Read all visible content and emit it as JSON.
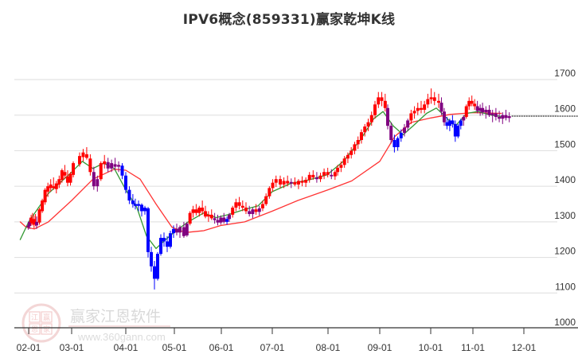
{
  "title": "IPV6概念(859331)赢家乾坤K线",
  "watermark": {
    "brand": "赢家江恩软件",
    "url": "www.360gann.com",
    "seal_chars": [
      "江",
      "赢",
      "恩",
      "家"
    ]
  },
  "colors": {
    "up": "#ff0000",
    "down": "#0000ff",
    "neutral": "#800080",
    "ma_short": "#339933",
    "ma_long": "#ff3333",
    "grid": "#dddddd",
    "axis": "#333333",
    "last_price_line": "#000000"
  },
  "chart_data": {
    "type": "candlestick",
    "title": "IPV6概念(859331)赢家乾坤K线",
    "xlabel": "",
    "ylabel": "",
    "ylim": [
      1000,
      1700
    ],
    "y_ticks": [
      1000,
      1100,
      1200,
      1300,
      1400,
      1500,
      1600,
      1700
    ],
    "x_ticks": [
      "02-01",
      "03-01",
      "04-01",
      "05-01",
      "06-01",
      "07-01",
      "08-01",
      "09-01",
      "10-01",
      "11-01",
      "12-01"
    ],
    "grid": true,
    "y_axis_position": "right",
    "last_price": 1597,
    "series_note": "OHLC approximated from pixels; color: red=up, blue=down, purple=neutral/transition",
    "candles": [
      [
        "01-20",
        1290,
        1300,
        1278,
        1285,
        "n"
      ],
      [
        "01-22",
        1288,
        1310,
        1280,
        1300,
        "n"
      ],
      [
        "01-24",
        1298,
        1320,
        1290,
        1312,
        "u"
      ],
      [
        "01-26",
        1305,
        1325,
        1290,
        1295,
        "u"
      ],
      [
        "01-28",
        1292,
        1318,
        1282,
        1308,
        "u"
      ],
      [
        "01-30",
        1300,
        1322,
        1288,
        1295,
        "u"
      ],
      [
        "02-01",
        1290,
        1315,
        1280,
        1300,
        "n"
      ],
      [
        "02-03",
        1298,
        1340,
        1292,
        1335,
        "u"
      ],
      [
        "02-05",
        1330,
        1365,
        1325,
        1360,
        "u"
      ],
      [
        "02-07",
        1355,
        1395,
        1348,
        1390,
        "u"
      ],
      [
        "02-09",
        1385,
        1410,
        1370,
        1400,
        "u"
      ],
      [
        "02-11",
        1395,
        1420,
        1385,
        1405,
        "u"
      ],
      [
        "02-13",
        1400,
        1425,
        1390,
        1395,
        "u"
      ],
      [
        "02-15",
        1392,
        1415,
        1380,
        1408,
        "u"
      ],
      [
        "02-17",
        1405,
        1430,
        1395,
        1420,
        "u"
      ],
      [
        "02-19",
        1418,
        1450,
        1410,
        1445,
        "u"
      ],
      [
        "02-21",
        1440,
        1460,
        1420,
        1430,
        "u"
      ],
      [
        "02-23",
        1428,
        1445,
        1400,
        1410,
        "u"
      ],
      [
        "02-25",
        1410,
        1440,
        1402,
        1435,
        "u"
      ],
      [
        "02-27",
        1432,
        1470,
        1425,
        1465,
        "u"
      ],
      [
        "03-01",
        1462,
        1495,
        1455,
        1485,
        "u"
      ],
      [
        "03-03",
        1482,
        1505,
        1470,
        1495,
        "u"
      ],
      [
        "03-05",
        1490,
        1510,
        1475,
        1480,
        "u"
      ],
      [
        "03-07",
        1478,
        1490,
        1430,
        1440,
        "u"
      ],
      [
        "03-09",
        1440,
        1455,
        1390,
        1400,
        "n"
      ],
      [
        "03-11",
        1400,
        1430,
        1385,
        1420,
        "n"
      ],
      [
        "03-13",
        1420,
        1470,
        1415,
        1465,
        "u"
      ],
      [
        "03-15",
        1462,
        1488,
        1450,
        1470,
        "u"
      ],
      [
        "03-17",
        1468,
        1480,
        1440,
        1450,
        "n"
      ],
      [
        "03-19",
        1450,
        1475,
        1440,
        1465,
        "n"
      ],
      [
        "03-21",
        1462,
        1480,
        1445,
        1455,
        "n"
      ],
      [
        "03-23",
        1455,
        1470,
        1440,
        1460,
        "n"
      ],
      [
        "03-25",
        1458,
        1465,
        1420,
        1430,
        "d"
      ],
      [
        "03-27",
        1430,
        1440,
        1380,
        1390,
        "d"
      ],
      [
        "03-29",
        1390,
        1400,
        1350,
        1360,
        "d"
      ],
      [
        "03-31",
        1360,
        1378,
        1340,
        1350,
        "d"
      ],
      [
        "04-02",
        1350,
        1365,
        1335,
        1345,
        "d"
      ],
      [
        "04-04",
        1345,
        1360,
        1330,
        1350,
        "d"
      ],
      [
        "04-06",
        1348,
        1352,
        1315,
        1330,
        "d"
      ],
      [
        "04-08",
        1330,
        1345,
        1320,
        1340,
        "d"
      ],
      [
        "04-10",
        1338,
        1342,
        1200,
        1215,
        "d"
      ],
      [
        "04-12",
        1215,
        1230,
        1160,
        1175,
        "d"
      ],
      [
        "04-14",
        1175,
        1190,
        1110,
        1140,
        "d"
      ],
      [
        "04-16",
        1140,
        1215,
        1135,
        1210,
        "d"
      ],
      [
        "04-18",
        1210,
        1265,
        1205,
        1255,
        "d"
      ],
      [
        "04-20",
        1255,
        1270,
        1230,
        1245,
        "d"
      ],
      [
        "04-22",
        1245,
        1260,
        1215,
        1230,
        "d"
      ],
      [
        "04-24",
        1230,
        1275,
        1225,
        1268,
        "d"
      ],
      [
        "04-26",
        1268,
        1290,
        1255,
        1280,
        "d"
      ],
      [
        "04-28",
        1280,
        1295,
        1262,
        1270,
        "n"
      ],
      [
        "04-30",
        1270,
        1290,
        1255,
        1285,
        "n"
      ],
      [
        "05-02",
        1285,
        1300,
        1255,
        1260,
        "n"
      ],
      [
        "05-04",
        1262,
        1300,
        1258,
        1295,
        "n"
      ],
      [
        "05-06",
        1295,
        1330,
        1290,
        1325,
        "u"
      ],
      [
        "05-08",
        1325,
        1345,
        1312,
        1335,
        "u"
      ],
      [
        "05-10",
        1335,
        1350,
        1318,
        1325,
        "u"
      ],
      [
        "05-12",
        1325,
        1345,
        1315,
        1340,
        "u"
      ],
      [
        "05-14",
        1340,
        1360,
        1320,
        1330,
        "u"
      ],
      [
        "05-16",
        1330,
        1345,
        1310,
        1315,
        "u"
      ],
      [
        "05-18",
        1315,
        1330,
        1300,
        1320,
        "u"
      ],
      [
        "05-20",
        1320,
        1335,
        1305,
        1310,
        "u"
      ],
      [
        "05-22",
        1310,
        1325,
        1295,
        1305,
        "n"
      ],
      [
        "05-24",
        1305,
        1320,
        1290,
        1298,
        "n"
      ],
      [
        "05-26",
        1298,
        1318,
        1292,
        1312,
        "n"
      ],
      [
        "05-28",
        1312,
        1325,
        1295,
        1300,
        "n"
      ],
      [
        "05-30",
        1300,
        1315,
        1292,
        1308,
        "d"
      ],
      [
        "06-01",
        1308,
        1325,
        1300,
        1320,
        "n"
      ],
      [
        "06-03",
        1320,
        1345,
        1312,
        1340,
        "u"
      ],
      [
        "06-05",
        1340,
        1365,
        1330,
        1355,
        "u"
      ],
      [
        "06-07",
        1355,
        1370,
        1335,
        1345,
        "u"
      ],
      [
        "06-09",
        1345,
        1360,
        1330,
        1340,
        "u"
      ],
      [
        "06-11",
        1340,
        1355,
        1322,
        1330,
        "u"
      ],
      [
        "06-13",
        1330,
        1345,
        1315,
        1322,
        "n"
      ],
      [
        "06-15",
        1322,
        1340,
        1310,
        1335,
        "n"
      ],
      [
        "06-17",
        1335,
        1350,
        1320,
        1328,
        "u"
      ],
      [
        "06-19",
        1328,
        1345,
        1318,
        1338,
        "n"
      ],
      [
        "06-21",
        1338,
        1360,
        1330,
        1350,
        "u"
      ],
      [
        "06-23",
        1350,
        1380,
        1345,
        1372,
        "u"
      ],
      [
        "06-25",
        1372,
        1400,
        1365,
        1395,
        "u"
      ],
      [
        "06-27",
        1395,
        1420,
        1385,
        1410,
        "u"
      ],
      [
        "06-29",
        1410,
        1430,
        1398,
        1420,
        "u"
      ],
      [
        "07-01",
        1420,
        1430,
        1395,
        1405,
        "u"
      ],
      [
        "07-03",
        1405,
        1425,
        1395,
        1415,
        "u"
      ],
      [
        "07-05",
        1415,
        1430,
        1400,
        1408,
        "u"
      ],
      [
        "07-07",
        1408,
        1422,
        1395,
        1412,
        "n"
      ],
      [
        "07-09",
        1412,
        1425,
        1400,
        1405,
        "u"
      ],
      [
        "07-11",
        1405,
        1420,
        1392,
        1415,
        "u"
      ],
      [
        "07-13",
        1415,
        1428,
        1400,
        1410,
        "u"
      ],
      [
        "07-15",
        1410,
        1425,
        1398,
        1418,
        "u"
      ],
      [
        "07-17",
        1418,
        1440,
        1410,
        1432,
        "u"
      ],
      [
        "07-19",
        1432,
        1445,
        1418,
        1425,
        "u"
      ],
      [
        "07-21",
        1425,
        1440,
        1410,
        1420,
        "n"
      ],
      [
        "07-23",
        1420,
        1438,
        1412,
        1430,
        "u"
      ],
      [
        "07-25",
        1430,
        1450,
        1420,
        1440,
        "u"
      ],
      [
        "07-27",
        1440,
        1452,
        1425,
        1432,
        "u"
      ],
      [
        "07-29",
        1432,
        1448,
        1420,
        1428,
        "n"
      ],
      [
        "07-31",
        1428,
        1445,
        1418,
        1440,
        "u"
      ],
      [
        "08-02",
        1440,
        1460,
        1430,
        1452,
        "u"
      ],
      [
        "08-04",
        1452,
        1470,
        1440,
        1460,
        "u"
      ],
      [
        "08-06",
        1460,
        1485,
        1452,
        1478,
        "u"
      ],
      [
        "08-08",
        1478,
        1495,
        1465,
        1488,
        "u"
      ],
      [
        "08-10",
        1488,
        1510,
        1478,
        1500,
        "u"
      ],
      [
        "08-12",
        1500,
        1525,
        1490,
        1518,
        "u"
      ],
      [
        "08-14",
        1518,
        1540,
        1505,
        1530,
        "u"
      ],
      [
        "08-16",
        1530,
        1560,
        1520,
        1552,
        "u"
      ],
      [
        "08-18",
        1552,
        1575,
        1540,
        1568,
        "u"
      ],
      [
        "08-20",
        1568,
        1590,
        1555,
        1580,
        "u"
      ],
      [
        "08-22",
        1580,
        1610,
        1570,
        1600,
        "u"
      ],
      [
        "08-24",
        1600,
        1640,
        1590,
        1630,
        "u"
      ],
      [
        "08-26",
        1630,
        1665,
        1620,
        1650,
        "u"
      ],
      [
        "08-28",
        1650,
        1665,
        1625,
        1640,
        "u"
      ],
      [
        "08-30",
        1640,
        1660,
        1610,
        1620,
        "u"
      ],
      [
        "09-01",
        1620,
        1630,
        1560,
        1570,
        "n"
      ],
      [
        "09-03",
        1570,
        1580,
        1520,
        1530,
        "n"
      ],
      [
        "09-05",
        1530,
        1545,
        1495,
        1510,
        "d"
      ],
      [
        "09-07",
        1510,
        1540,
        1500,
        1535,
        "d"
      ],
      [
        "09-09",
        1535,
        1560,
        1525,
        1550,
        "d"
      ],
      [
        "09-11",
        1550,
        1575,
        1540,
        1565,
        "n"
      ],
      [
        "09-13",
        1565,
        1590,
        1555,
        1585,
        "n"
      ],
      [
        "09-15",
        1585,
        1615,
        1575,
        1605,
        "u"
      ],
      [
        "09-17",
        1605,
        1625,
        1590,
        1612,
        "u"
      ],
      [
        "09-19",
        1612,
        1635,
        1600,
        1620,
        "u"
      ],
      [
        "09-21",
        1620,
        1640,
        1605,
        1615,
        "u"
      ],
      [
        "09-23",
        1615,
        1640,
        1605,
        1630,
        "u"
      ],
      [
        "09-25",
        1630,
        1660,
        1620,
        1645,
        "u"
      ],
      [
        "09-27",
        1645,
        1675,
        1632,
        1650,
        "u"
      ],
      [
        "09-29",
        1650,
        1665,
        1628,
        1640,
        "u"
      ],
      [
        "10-01",
        1640,
        1660,
        1620,
        1635,
        "u"
      ],
      [
        "10-03",
        1635,
        1650,
        1600,
        1610,
        "n"
      ],
      [
        "10-05",
        1610,
        1620,
        1570,
        1580,
        "n"
      ],
      [
        "10-07",
        1580,
        1595,
        1560,
        1570,
        "d"
      ],
      [
        "10-09",
        1570,
        1590,
        1555,
        1585,
        "d"
      ],
      [
        "10-11",
        1585,
        1600,
        1565,
        1575,
        "d"
      ],
      [
        "10-13",
        1575,
        1585,
        1525,
        1540,
        "d"
      ],
      [
        "10-15",
        1540,
        1575,
        1535,
        1570,
        "d"
      ],
      [
        "10-17",
        1570,
        1590,
        1560,
        1585,
        "d"
      ],
      [
        "10-19",
        1585,
        1600,
        1570,
        1595,
        "n"
      ],
      [
        "10-21",
        1595,
        1630,
        1590,
        1625,
        "u"
      ],
      [
        "10-23",
        1625,
        1650,
        1615,
        1640,
        "u"
      ],
      [
        "10-25",
        1640,
        1655,
        1625,
        1632,
        "u"
      ],
      [
        "10-27",
        1632,
        1645,
        1615,
        1625,
        "u"
      ],
      [
        "10-29",
        1625,
        1640,
        1605,
        1612,
        "n"
      ],
      [
        "10-31",
        1612,
        1630,
        1598,
        1620,
        "n"
      ],
      [
        "11-02",
        1620,
        1635,
        1600,
        1608,
        "n"
      ],
      [
        "11-04",
        1608,
        1625,
        1590,
        1615,
        "n"
      ],
      [
        "11-06",
        1615,
        1628,
        1595,
        1600,
        "n"
      ],
      [
        "11-08",
        1600,
        1615,
        1580,
        1605,
        "n"
      ],
      [
        "11-10",
        1605,
        1620,
        1585,
        1595,
        "n"
      ],
      [
        "11-12",
        1595,
        1612,
        1580,
        1590,
        "n"
      ],
      [
        "11-14",
        1590,
        1608,
        1575,
        1600,
        "n"
      ],
      [
        "11-16",
        1600,
        1615,
        1585,
        1592,
        "n"
      ],
      [
        "11-18",
        1592,
        1608,
        1580,
        1597,
        "n"
      ]
    ],
    "ma_short": [
      [
        "01-20",
        1250
      ],
      [
        "02-01",
        1300
      ],
      [
        "02-15",
        1380
      ],
      [
        "03-01",
        1440
      ],
      [
        "03-07",
        1470
      ],
      [
        "03-13",
        1450
      ],
      [
        "03-19",
        1465
      ],
      [
        "03-25",
        1450
      ],
      [
        "04-01",
        1390
      ],
      [
        "04-08",
        1340
      ],
      [
        "04-14",
        1260
      ],
      [
        "04-20",
        1225
      ],
      [
        "04-26",
        1250
      ],
      [
        "05-02",
        1275
      ],
      [
        "05-10",
        1300
      ],
      [
        "05-20",
        1325
      ],
      [
        "05-28",
        1312
      ],
      [
        "06-05",
        1320
      ],
      [
        "06-15",
        1335
      ],
      [
        "06-23",
        1345
      ],
      [
        "07-01",
        1385
      ],
      [
        "07-11",
        1408
      ],
      [
        "07-21",
        1418
      ],
      [
        "07-31",
        1432
      ],
      [
        "08-10",
        1470
      ],
      [
        "08-20",
        1530
      ],
      [
        "08-28",
        1590
      ],
      [
        "09-03",
        1610
      ],
      [
        "09-09",
        1570
      ],
      [
        "09-15",
        1545
      ],
      [
        "09-21",
        1570
      ],
      [
        "09-29",
        1605
      ],
      [
        "10-05",
        1620
      ],
      [
        "10-13",
        1590
      ],
      [
        "10-19",
        1570
      ],
      [
        "10-27",
        1605
      ],
      [
        "11-04",
        1610
      ],
      [
        "11-12",
        1600
      ],
      [
        "11-18",
        1596
      ]
    ],
    "ma_long": [
      [
        "01-20",
        1300
      ],
      [
        "01-28",
        1285
      ],
      [
        "02-05",
        1280
      ],
      [
        "02-15",
        1300
      ],
      [
        "03-01",
        1360
      ],
      [
        "03-13",
        1420
      ],
      [
        "03-25",
        1448
      ],
      [
        "04-01",
        1445
      ],
      [
        "04-10",
        1420
      ],
      [
        "04-20",
        1350
      ],
      [
        "04-30",
        1285
      ],
      [
        "05-08",
        1270
      ],
      [
        "05-20",
        1275
      ],
      [
        "06-01",
        1290
      ],
      [
        "06-15",
        1300
      ],
      [
        "07-01",
        1330
      ],
      [
        "07-15",
        1360
      ],
      [
        "08-01",
        1390
      ],
      [
        "08-15",
        1415
      ],
      [
        "09-01",
        1470
      ],
      [
        "09-10",
        1540
      ],
      [
        "09-20",
        1580
      ],
      [
        "10-01",
        1592
      ],
      [
        "10-15",
        1602
      ],
      [
        "11-01",
        1607
      ],
      [
        "11-18",
        1605
      ]
    ]
  }
}
